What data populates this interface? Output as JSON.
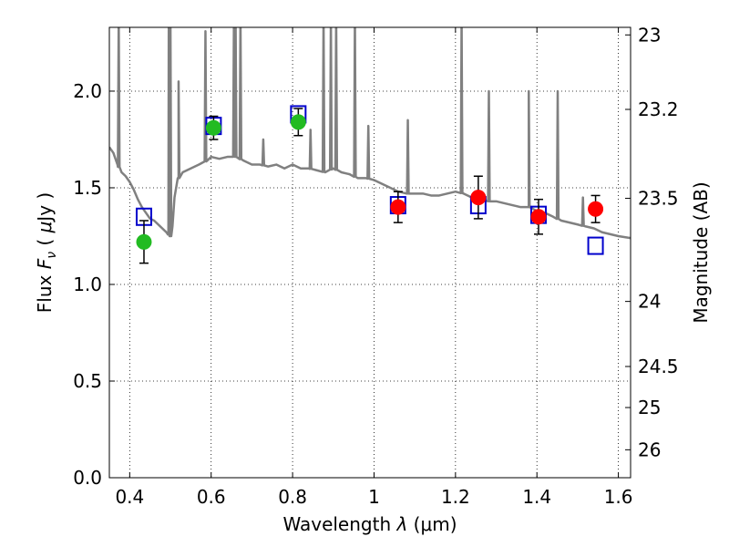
{
  "chart_data": {
    "type": "scatter",
    "xlabel": "Wavelength  λ (μm)",
    "ylabel": "Flux  F_ν  ( μJy )",
    "y2label": "Magnitude (AB)",
    "xlim": [
      0.35,
      1.63
    ],
    "ylim": [
      0.0,
      2.33
    ],
    "grid": true,
    "x_ticks": [
      0.4,
      0.6,
      0.8,
      1.0,
      1.2,
      1.4,
      1.6
    ],
    "x_tick_labels": [
      "0.4",
      "0.6",
      "0.8",
      "1",
      "1.2",
      "1.4",
      "1.6"
    ],
    "y_ticks": [
      0.0,
      0.5,
      1.0,
      1.5,
      2.0
    ],
    "y_tick_labels": [
      "0.0",
      "0.5",
      "1.0",
      "1.5",
      "2.0"
    ],
    "y2_ticks": [
      23,
      23.2,
      23.5,
      24,
      24.5,
      25,
      26
    ],
    "y2_tick_labels": [
      "23",
      "23.2",
      "23.5",
      "24",
      "24.5",
      "25",
      "26"
    ],
    "colors": {
      "model": "#808080",
      "model_points": "#0000cc",
      "green": "#22bb22",
      "red": "#ff0000",
      "errorbar": "#000000"
    },
    "series": [
      {
        "kind": "model-spectrum",
        "x": [
          0.35,
          0.36,
          0.37,
          0.38,
          0.39,
          0.4,
          0.41,
          0.42,
          0.43,
          0.44,
          0.45,
          0.46,
          0.47,
          0.48,
          0.485,
          0.49,
          0.495,
          0.5,
          0.505,
          0.51,
          0.52,
          0.53,
          0.55,
          0.57,
          0.59,
          0.6,
          0.62,
          0.64,
          0.66,
          0.68,
          0.7,
          0.72,
          0.74,
          0.76,
          0.78,
          0.8,
          0.82,
          0.84,
          0.86,
          0.88,
          0.9,
          0.92,
          0.94,
          0.96,
          0.98,
          1.0,
          1.02,
          1.04,
          1.06,
          1.08,
          1.1,
          1.12,
          1.14,
          1.16,
          1.18,
          1.2,
          1.22,
          1.24,
          1.26,
          1.28,
          1.3,
          1.32,
          1.34,
          1.36,
          1.38,
          1.4,
          1.42,
          1.44,
          1.46,
          1.48,
          1.5,
          1.52,
          1.54,
          1.56,
          1.58,
          1.6,
          1.63
        ],
        "y": [
          1.71,
          1.68,
          1.62,
          1.58,
          1.56,
          1.53,
          1.49,
          1.44,
          1.4,
          1.37,
          1.34,
          1.33,
          1.31,
          1.29,
          1.28,
          1.27,
          1.26,
          1.25,
          1.3,
          1.45,
          1.55,
          1.58,
          1.6,
          1.62,
          1.64,
          1.66,
          1.65,
          1.66,
          1.66,
          1.64,
          1.62,
          1.62,
          1.61,
          1.62,
          1.6,
          1.62,
          1.6,
          1.6,
          1.59,
          1.58,
          1.6,
          1.58,
          1.57,
          1.55,
          1.55,
          1.54,
          1.52,
          1.5,
          1.48,
          1.47,
          1.47,
          1.47,
          1.46,
          1.46,
          1.47,
          1.48,
          1.47,
          1.45,
          1.44,
          1.43,
          1.43,
          1.42,
          1.41,
          1.4,
          1.4,
          1.38,
          1.37,
          1.35,
          1.33,
          1.32,
          1.31,
          1.3,
          1.29,
          1.27,
          1.26,
          1.25,
          1.24
        ],
        "emission_lines": [
          {
            "x": 0.373,
            "peak": 2.33
          },
          {
            "x": 0.496,
            "peak": 2.33
          },
          {
            "x": 0.5,
            "peak": 2.33
          },
          {
            "x": 0.52,
            "peak": 2.0
          },
          {
            "x": 0.586,
            "peak": 2.26
          },
          {
            "x": 0.656,
            "peak": 2.33
          },
          {
            "x": 0.66,
            "peak": 2.33
          },
          {
            "x": 0.672,
            "peak": 2.33
          },
          {
            "x": 0.728,
            "peak": 1.7
          },
          {
            "x": 0.844,
            "peak": 1.75
          },
          {
            "x": 0.876,
            "peak": 2.33
          },
          {
            "x": 0.894,
            "peak": 2.33
          },
          {
            "x": 0.907,
            "peak": 2.33
          },
          {
            "x": 0.953,
            "peak": 2.33
          },
          {
            "x": 0.986,
            "peak": 1.77
          },
          {
            "x": 1.083,
            "peak": 1.8
          },
          {
            "x": 1.215,
            "peak": 2.33
          },
          {
            "x": 1.282,
            "peak": 1.95
          },
          {
            "x": 1.38,
            "peak": 1.95
          },
          {
            "x": 1.451,
            "peak": 1.95
          },
          {
            "x": 1.513,
            "peak": 1.4
          }
        ]
      },
      {
        "kind": "model-photometry",
        "marker": "open-square",
        "x": [
          0.435,
          0.606,
          0.814,
          1.059,
          1.256,
          1.404,
          1.544
        ],
        "y": [
          1.35,
          1.82,
          1.88,
          1.41,
          1.41,
          1.36,
          1.2
        ]
      },
      {
        "kind": "observed",
        "marker": "filled-circle",
        "color_key": "green",
        "x": [
          0.435,
          0.606,
          0.814
        ],
        "y": [
          1.22,
          1.81,
          1.84
        ],
        "yerr": [
          0.11,
          0.06,
          0.07
        ]
      },
      {
        "kind": "observed",
        "marker": "filled-circle",
        "color_key": "red",
        "x": [
          1.059,
          1.256,
          1.404,
          1.544
        ],
        "y": [
          1.4,
          1.45,
          1.35,
          1.39
        ],
        "yerr": [
          0.08,
          0.11,
          0.09,
          0.07
        ]
      }
    ]
  }
}
